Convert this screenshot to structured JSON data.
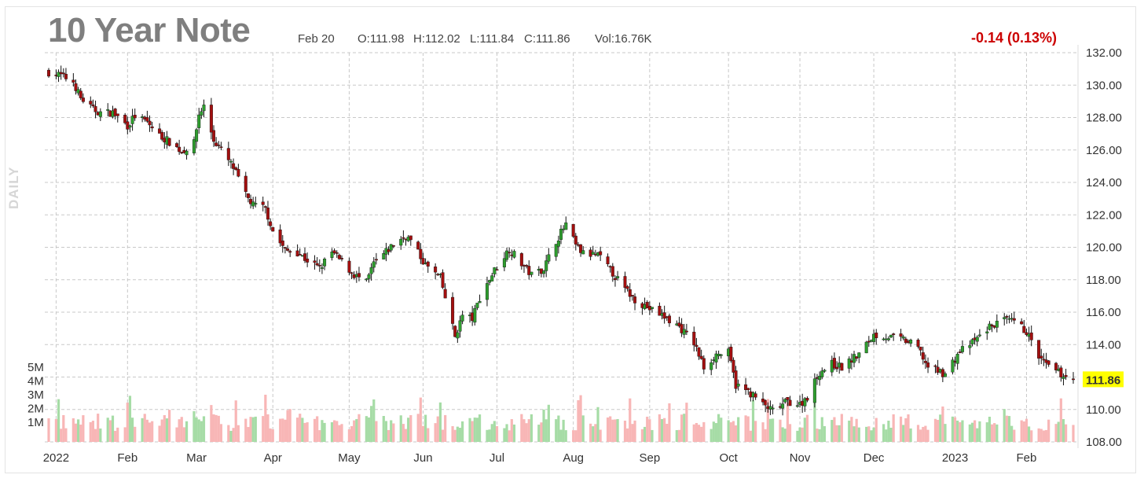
{
  "header": {
    "title": "10 Year Note",
    "date": "Feb 20",
    "open": "O:111.98",
    "high": "H:112.02",
    "low": "L:111.84",
    "close": "C:111.86",
    "volume": "Vol:16.76K",
    "change": "-0.14 (0.13%)",
    "change_color": "#cc0000",
    "period": "DAILY"
  },
  "chart_data": {
    "type": "candlestick",
    "title": "10 Year Note",
    "period": "DAILY",
    "last_price": 111.86,
    "last_price_label": "111.86",
    "colors": {
      "up": "#2e9e2e",
      "down": "#a30f0f",
      "volume_up": "#a6dca6",
      "volume_down": "#f8b6b6",
      "last_price_highlight": "#ffff00"
    },
    "grid": true,
    "y_axis": {
      "position": "right",
      "min": 108,
      "max": 132,
      "ticks": [
        132,
        130,
        128,
        126,
        124,
        122,
        120,
        118,
        116,
        114,
        112,
        110,
        108
      ],
      "tick_labels": [
        "132.00",
        "130.00",
        "128.00",
        "126.00",
        "124.00",
        "122.00",
        "120.00",
        "118.00",
        "116.00",
        "114.00",
        "112.00",
        "110.00",
        "108.00"
      ]
    },
    "volume_axis": {
      "position": "left",
      "ticks": [
        5,
        4,
        3,
        2,
        1
      ],
      "tick_labels": [
        "5M",
        "4M",
        "3M",
        "2M",
        "1M"
      ]
    },
    "x_axis": {
      "labels": [
        "2022",
        "Feb",
        "Mar",
        "Apr",
        "May",
        "Jun",
        "Jul",
        "Aug",
        "Sep",
        "Oct",
        "Nov",
        "Dec",
        "2023",
        "Feb"
      ],
      "label_dates": [
        "2022-01-03",
        "2022-02-01",
        "2022-03-01",
        "2022-04-01",
        "2022-05-02",
        "2022-06-01",
        "2022-07-01",
        "2022-08-01",
        "2022-09-01",
        "2022-10-03",
        "2022-11-01",
        "2022-12-01",
        "2023-01-03",
        "2023-02-01"
      ],
      "start": "2021-12-31",
      "end": "2023-02-20"
    },
    "close_series": {
      "dates": [
        "2021-12-31",
        "2022-01-05",
        "2022-01-10",
        "2022-01-13",
        "2022-01-18",
        "2022-01-21",
        "2022-01-26",
        "2022-02-01",
        "2022-02-04",
        "2022-02-09",
        "2022-02-14",
        "2022-02-18",
        "2022-02-23",
        "2022-02-28",
        "2022-03-02",
        "2022-03-04",
        "2022-03-08",
        "2022-03-11",
        "2022-03-16",
        "2022-03-21",
        "2022-03-24",
        "2022-03-29",
        "2022-04-01",
        "2022-04-06",
        "2022-04-11",
        "2022-04-14",
        "2022-04-20",
        "2022-04-25",
        "2022-04-29",
        "2022-05-04",
        "2022-05-09",
        "2022-05-12",
        "2022-05-17",
        "2022-05-20",
        "2022-05-25",
        "2022-05-27",
        "2022-06-02",
        "2022-06-08",
        "2022-06-14",
        "2022-06-17",
        "2022-06-21",
        "2022-06-24",
        "2022-06-30",
        "2022-07-06",
        "2022-07-11",
        "2022-07-15",
        "2022-07-20",
        "2022-07-25",
        "2022-07-29",
        "2022-08-02",
        "2022-08-05",
        "2022-08-11",
        "2022-08-16",
        "2022-08-22",
        "2022-08-26",
        "2022-09-01",
        "2022-09-07",
        "2022-09-13",
        "2022-09-19",
        "2022-09-23",
        "2022-09-28",
        "2022-10-03",
        "2022-10-06",
        "2022-10-12",
        "2022-10-17",
        "2022-10-21",
        "2022-10-27",
        "2022-11-01",
        "2022-11-04",
        "2022-11-09",
        "2022-11-14",
        "2022-11-18",
        "2022-11-25",
        "2022-12-01",
        "2022-12-06",
        "2022-12-13",
        "2022-12-19",
        "2022-12-23",
        "2022-12-30",
        "2023-01-05",
        "2023-01-10",
        "2023-01-17",
        "2023-01-23",
        "2023-01-27",
        "2023-02-01",
        "2023-02-06",
        "2023-02-10",
        "2023-02-16",
        "2023-02-20"
      ],
      "close": [
        130.8,
        130.6,
        130.2,
        129.2,
        128.5,
        128.3,
        128.3,
        127.5,
        128.1,
        127.7,
        126.9,
        126.5,
        125.9,
        126.4,
        128.2,
        128.7,
        126.6,
        126.0,
        124.9,
        123.2,
        122.6,
        122.4,
        121.0,
        119.8,
        119.7,
        119.3,
        118.7,
        119.7,
        119.1,
        118.3,
        117.8,
        119.0,
        119.7,
        120.2,
        120.7,
        120.4,
        118.9,
        118.1,
        114.5,
        115.8,
        115.6,
        116.9,
        118.6,
        119.9,
        119.0,
        118.3,
        118.7,
        120.4,
        121.4,
        120.1,
        119.6,
        119.5,
        118.6,
        117.4,
        116.8,
        116.2,
        115.7,
        115.1,
        114.1,
        112.6,
        113.4,
        113.5,
        111.5,
        111.0,
        110.3,
        109.9,
        110.5,
        110.3,
        110.8,
        112.3,
        112.8,
        112.6,
        113.4,
        114.6,
        114.5,
        114.3,
        113.8,
        112.6,
        112.2,
        113.6,
        114.1,
        115.1,
        115.5,
        115.4,
        114.8,
        113.2,
        112.6,
        112.1,
        111.86
      ]
    }
  }
}
